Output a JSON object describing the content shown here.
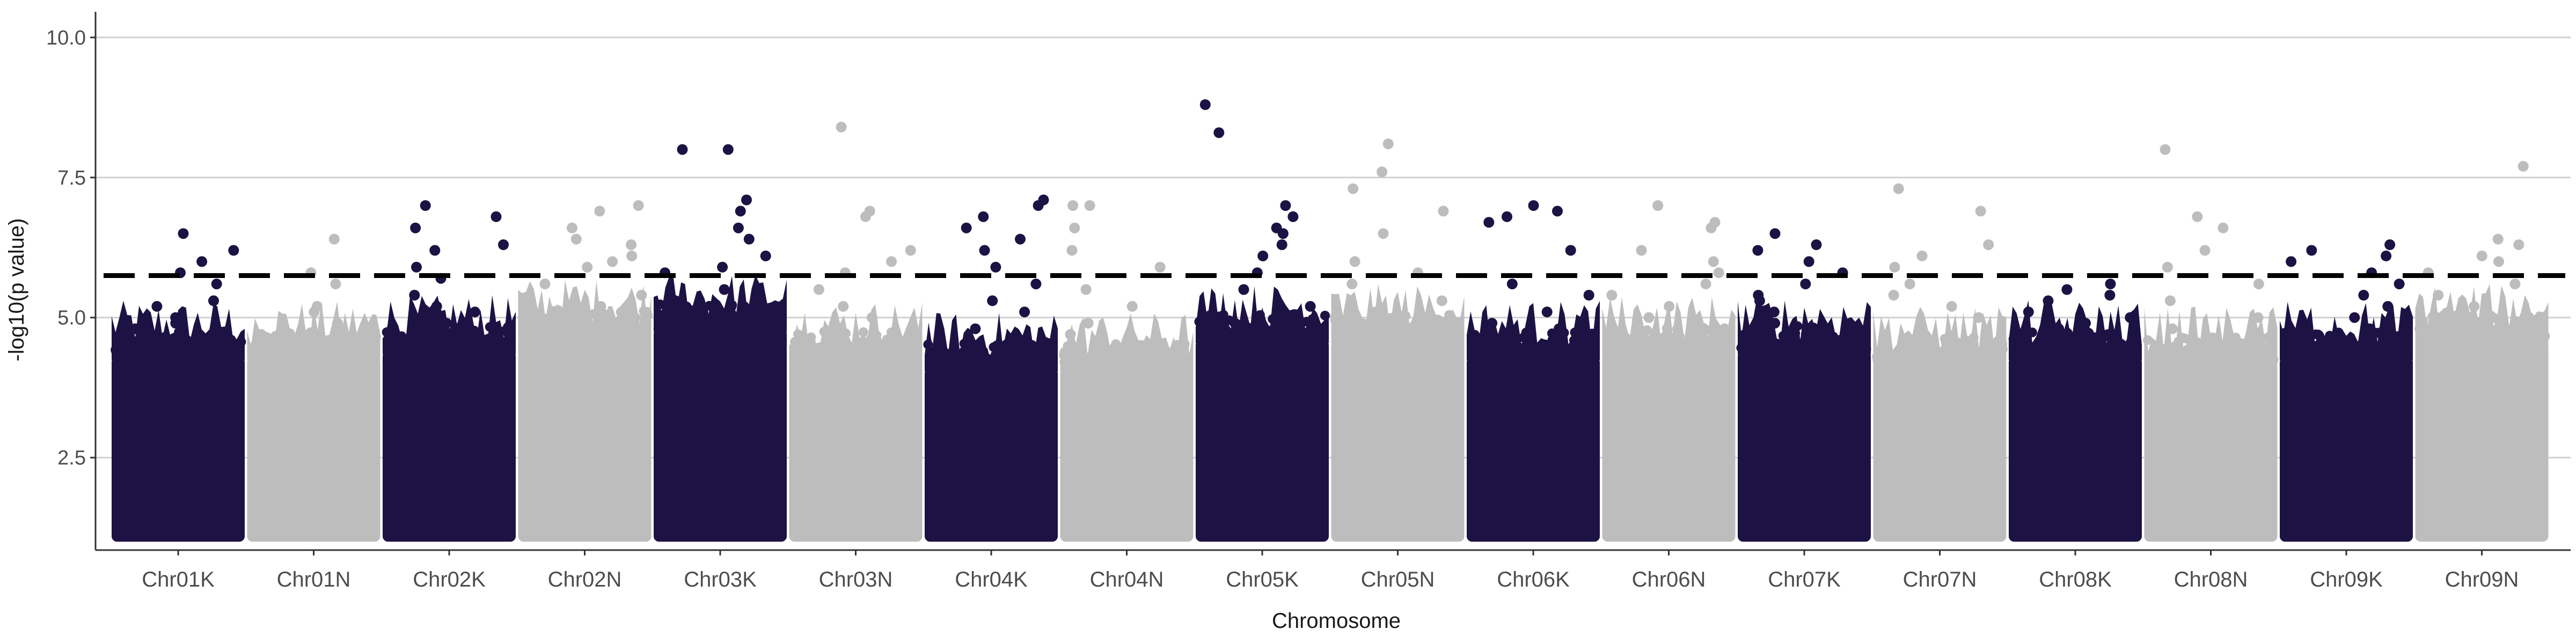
{
  "chart_data": {
    "type": "scatter",
    "subtype": "manhattan",
    "title": "",
    "xlabel": "Chromosome",
    "ylabel": "-log10(p value)",
    "ylim": [
      0.85,
      10.4
    ],
    "yticks": [
      2.5,
      5.0,
      7.5,
      10.0
    ],
    "ytick_labels": [
      "2.5",
      "5.0",
      "7.5",
      "10.0"
    ],
    "grid": "horizontal major gridlines",
    "legend": "none",
    "significance_threshold": 5.75,
    "threshold_style": "dashed black line",
    "colors": {
      "K": "#1d1244",
      "N": "#bdbdbd"
    },
    "categories": [
      "Chr01K",
      "Chr01N",
      "Chr02K",
      "Chr02N",
      "Chr03K",
      "Chr03N",
      "Chr04K",
      "Chr04N",
      "Chr05K",
      "Chr05N",
      "Chr06K",
      "Chr06N",
      "Chr07K",
      "Chr07N",
      "Chr08K",
      "Chr08N",
      "Chr09K",
      "Chr09N"
    ],
    "base_min_y": 1.0,
    "series": [
      {
        "name": "Chr01K",
        "bulk_max": 4.3,
        "top_points": [
          6.5,
          6.2,
          6.0,
          5.8,
          5.6,
          5.3,
          5.2,
          5.0,
          4.9,
          4.8,
          4.7
        ]
      },
      {
        "name": "Chr01N",
        "bulk_max": 4.3,
        "top_points": [
          6.4,
          5.8,
          5.6,
          5.2,
          5.1,
          4.9,
          4.8,
          4.7,
          4.6
        ]
      },
      {
        "name": "Chr02K",
        "bulk_max": 4.4,
        "top_points": [
          7.0,
          6.8,
          6.6,
          6.3,
          6.2,
          5.9,
          5.7,
          5.4,
          5.2,
          5.1,
          4.9
        ]
      },
      {
        "name": "Chr02N",
        "bulk_max": 4.7,
        "top_points": [
          7.0,
          6.9,
          6.6,
          6.4,
          6.3,
          6.1,
          6.0,
          5.9,
          5.6,
          5.4,
          5.2
        ]
      },
      {
        "name": "Chr03K",
        "bulk_max": 4.8,
        "top_points": [
          8.0,
          8.0,
          7.1,
          6.9,
          6.6,
          6.4,
          6.1,
          5.9,
          5.8,
          5.5,
          5.3
        ]
      },
      {
        "name": "Chr03N",
        "bulk_max": 4.3,
        "top_points": [
          8.4,
          6.9,
          6.8,
          6.2,
          6.0,
          5.8,
          5.5,
          5.2,
          5.0
        ]
      },
      {
        "name": "Chr04K",
        "bulk_max": 4.1,
        "top_points": [
          7.1,
          7.0,
          6.8,
          6.6,
          6.4,
          6.2,
          5.9,
          5.6,
          5.3,
          5.1,
          4.8
        ]
      },
      {
        "name": "Chr04N",
        "bulk_max": 4.1,
        "top_points": [
          7.0,
          7.0,
          6.6,
          6.2,
          5.9,
          5.5,
          5.2,
          4.9,
          4.7
        ]
      },
      {
        "name": "Chr05K",
        "bulk_max": 4.6,
        "top_points": [
          8.8,
          8.3,
          7.0,
          6.8,
          6.6,
          6.5,
          6.3,
          6.1,
          5.8,
          5.5,
          5.2
        ]
      },
      {
        "name": "Chr05N",
        "bulk_max": 4.6,
        "top_points": [
          8.1,
          7.6,
          7.3,
          6.9,
          6.5,
          6.0,
          5.8,
          5.6,
          5.3,
          5.1
        ]
      },
      {
        "name": "Chr06K",
        "bulk_max": 4.3,
        "top_points": [
          7.0,
          6.9,
          6.8,
          6.7,
          6.2,
          5.6,
          5.4,
          5.1,
          4.9,
          4.8
        ]
      },
      {
        "name": "Chr06N",
        "bulk_max": 4.4,
        "top_points": [
          7.0,
          6.7,
          6.6,
          6.2,
          6.0,
          5.8,
          5.6,
          5.4,
          5.2,
          5.0
        ]
      },
      {
        "name": "Chr07K",
        "bulk_max": 4.4,
        "top_points": [
          6.5,
          6.3,
          6.2,
          6.0,
          5.8,
          5.6,
          5.4,
          5.3,
          5.1,
          4.9
        ]
      },
      {
        "name": "Chr07N",
        "bulk_max": 4.2,
        "top_points": [
          7.3,
          6.9,
          6.3,
          6.1,
          5.9,
          5.6,
          5.4,
          5.2,
          5.0
        ]
      },
      {
        "name": "Chr08K",
        "bulk_max": 4.3,
        "top_points": [
          5.6,
          5.5,
          5.4,
          5.3,
          5.1,
          5.0,
          4.9,
          4.8,
          4.7
        ]
      },
      {
        "name": "Chr08N",
        "bulk_max": 4.2,
        "top_points": [
          8.0,
          6.8,
          6.6,
          6.2,
          5.9,
          5.6,
          5.3,
          5.0,
          4.8
        ]
      },
      {
        "name": "Chr09K",
        "bulk_max": 4.3,
        "top_points": [
          6.3,
          6.2,
          6.1,
          6.0,
          5.8,
          5.6,
          5.4,
          5.2,
          5.0,
          4.8
        ]
      },
      {
        "name": "Chr09N",
        "bulk_max": 4.6,
        "top_points": [
          7.7,
          6.4,
          6.3,
          6.1,
          6.0,
          5.8,
          5.6,
          5.4,
          5.2,
          5.0
        ]
      }
    ]
  }
}
